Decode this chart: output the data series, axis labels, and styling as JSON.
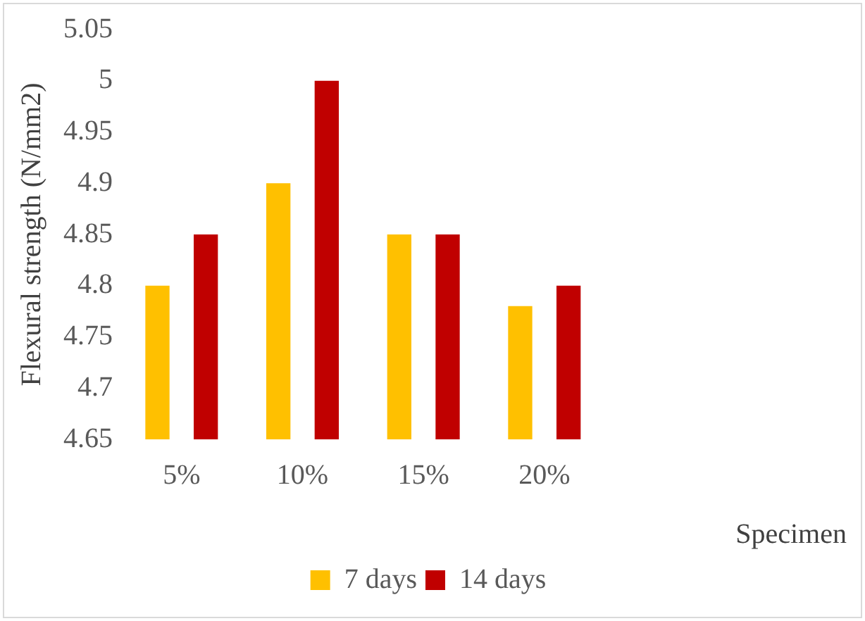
{
  "chart_data": {
    "type": "bar",
    "xlabel": "Specimen",
    "ylabel": "Flexural strength (N/mm2)",
    "categories": [
      "5%",
      "10%",
      "15%",
      "20%",
      null,
      null
    ],
    "series": [
      {
        "name": "7 days",
        "color": "#ffc000",
        "values": [
          4.8,
          4.9,
          4.85,
          4.78,
          null,
          null
        ]
      },
      {
        "name": "14 days",
        "color": "#c00000",
        "values": [
          4.85,
          5,
          4.85,
          4.8,
          null,
          null
        ]
      }
    ],
    "ylim": [
      4.65,
      5.05
    ],
    "yticks": [
      4.65,
      4.7,
      4.75,
      4.8,
      4.85,
      4.9,
      4.95,
      5,
      5.05
    ],
    "grid": false,
    "legend": "bottom"
  }
}
